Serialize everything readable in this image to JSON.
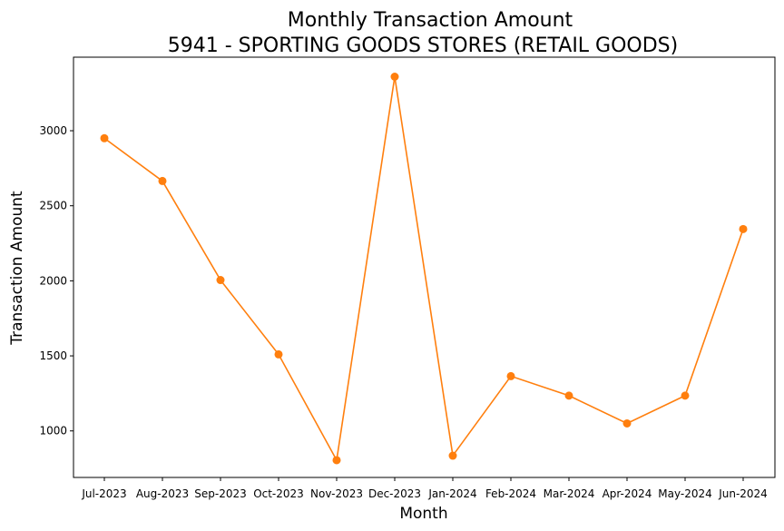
{
  "chart_data": {
    "type": "line",
    "title": "Monthly Transaction Amount",
    "subtitle": "5941 - SPORTING GOODS STORES (RETAIL GOODS)",
    "xlabel": "Month",
    "ylabel": "Transaction Amount",
    "categories": [
      "Jul-2023",
      "Aug-2023",
      "Sep-2023",
      "Oct-2023",
      "Nov-2023",
      "Dec-2023",
      "Jan-2024",
      "Feb-2024",
      "Mar-2024",
      "Apr-2024",
      "May-2024",
      "Jun-2024"
    ],
    "series": [
      {
        "values": [
          2950,
          2665,
          2005,
          1510,
          805,
          3360,
          835,
          1365,
          1235,
          1050,
          1235,
          2345
        ],
        "color": "#ff7f0e",
        "marker": "circle"
      }
    ],
    "yticks": [
      1000,
      1500,
      2000,
      2500,
      3000
    ],
    "ylim": [
      690,
      3490
    ],
    "grid": false,
    "legend": "none"
  }
}
